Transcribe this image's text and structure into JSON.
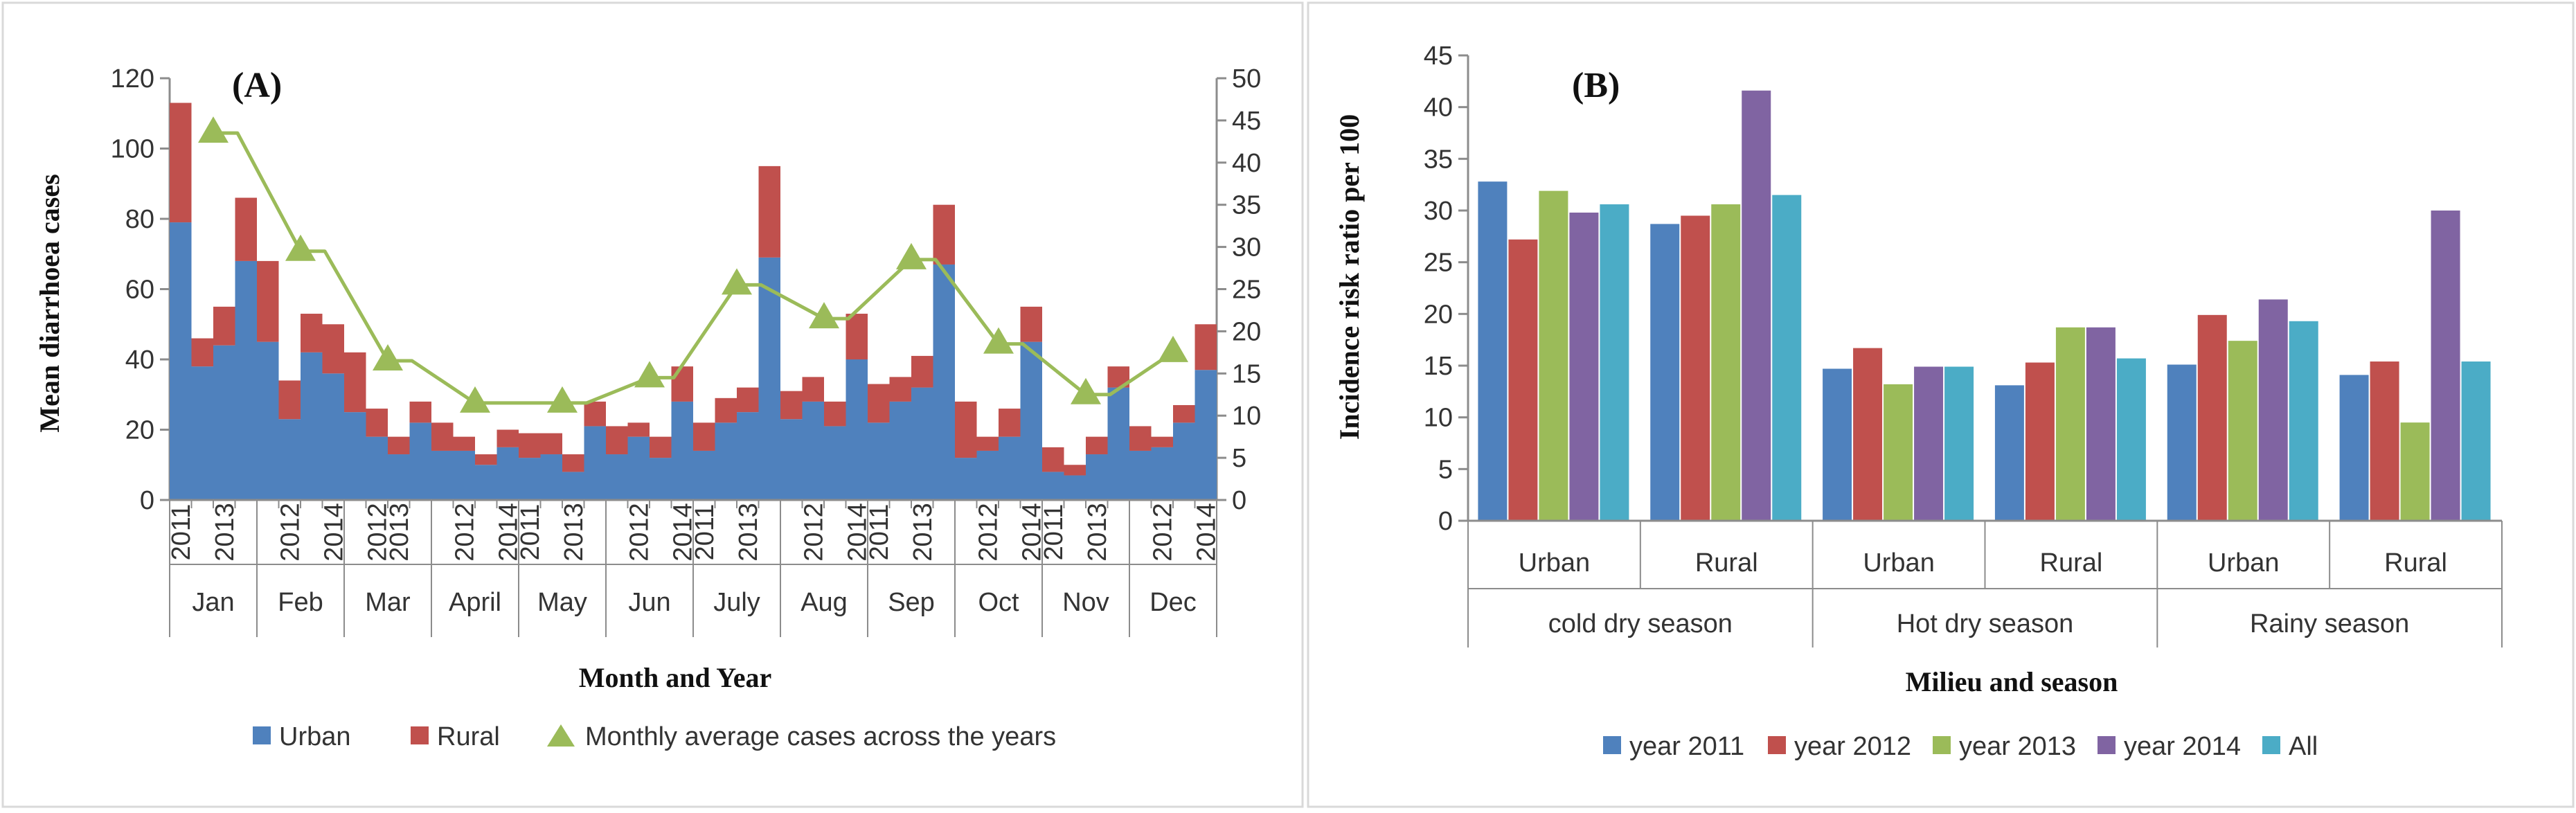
{
  "colors": {
    "urban": "#4F81BD",
    "rural": "#C0504D",
    "average": "#9BBB59",
    "y2011": "#4F81BD",
    "y2012": "#C0504D",
    "y2013": "#9BBB59",
    "y2014": "#8064A2",
    "all": "#4BACC6"
  },
  "chart_data": [
    {
      "type": "bar",
      "subtype": "stacked-with-line",
      "panel_label": "(A)",
      "xlabel": "Month and Year",
      "ylabel": "Mean diarrhoea cases",
      "ylim": [
        0,
        120
      ],
      "y_ticks": [
        0,
        20,
        40,
        60,
        80,
        100,
        120
      ],
      "y2lim": [
        0,
        50
      ],
      "y2_ticks": [
        0,
        5,
        10,
        15,
        20,
        25,
        30,
        35,
        40,
        45,
        50
      ],
      "months": [
        "Jan",
        "Feb",
        "Mar",
        "April",
        "May",
        "Jun",
        "July",
        "Aug",
        "Sep",
        "Oct",
        "Nov",
        "Dec"
      ],
      "year_labels": [
        [
          "2011",
          "",
          "2013",
          ""
        ],
        [
          "",
          "2012",
          "",
          "2014"
        ],
        [
          "",
          "2012",
          "2013",
          ""
        ],
        [
          "",
          "2012",
          "",
          "2014"
        ],
        [
          "2011",
          "",
          "2013",
          ""
        ],
        [
          "",
          "2012",
          "",
          "2014"
        ],
        [
          "2011",
          "",
          "2013",
          ""
        ],
        [
          "",
          "2012",
          "",
          "2014"
        ],
        [
          "2011",
          "",
          "2013",
          ""
        ],
        [
          "",
          "2012",
          "",
          "2014"
        ],
        [
          "2011",
          "",
          "2013",
          ""
        ],
        [
          "",
          "2012",
          "",
          "2014"
        ]
      ],
      "series": [
        {
          "name": "Urban",
          "values": [
            [
              79,
              38,
              44,
              68
            ],
            [
              45,
              23,
              42,
              36
            ],
            [
              25,
              18,
              13,
              22
            ],
            [
              14,
              14,
              10,
              15
            ],
            [
              12,
              13,
              8,
              21
            ],
            [
              13,
              18,
              12,
              28
            ],
            [
              14,
              22,
              25,
              69
            ],
            [
              23,
              28,
              21,
              40
            ],
            [
              22,
              28,
              32,
              67
            ],
            [
              12,
              14,
              18,
              45
            ],
            [
              8,
              7,
              13,
              32
            ],
            [
              14,
              15,
              22,
              37
            ]
          ]
        },
        {
          "name": "Rural",
          "values": [
            [
              34,
              8,
              11,
              18
            ],
            [
              23,
              11,
              11,
              14
            ],
            [
              17,
              8,
              5,
              6
            ],
            [
              8,
              4,
              3,
              5
            ],
            [
              7,
              6,
              5,
              7
            ],
            [
              8,
              4,
              6,
              10
            ],
            [
              8,
              7,
              7,
              26
            ],
            [
              8,
              7,
              7,
              13
            ],
            [
              11,
              7,
              9,
              17
            ],
            [
              16,
              4,
              8,
              10
            ],
            [
              7,
              3,
              5,
              6
            ],
            [
              7,
              3,
              5,
              13
            ]
          ]
        },
        {
          "name": "Monthly average cases across the years",
          "axis": "secondary",
          "values": [
            43.5,
            29.5,
            16.5,
            11.5,
            11.5,
            14.5,
            25.5,
            21.5,
            28.5,
            18.5,
            12.5,
            17.5
          ]
        }
      ],
      "legend": [
        "Urban",
        "Rural",
        "Monthly average cases across the years"
      ],
      "legend_position": "bottom"
    },
    {
      "type": "bar",
      "subtype": "grouped",
      "panel_label": "(B)",
      "xlabel": "Milieu and season",
      "ylabel": "Incidence risk ratio per 100",
      "ylim": [
        0,
        45
      ],
      "y_ticks": [
        0,
        5,
        10,
        15,
        20,
        25,
        30,
        35,
        40,
        45
      ],
      "seasons": [
        {
          "name": "cold dry season",
          "groups": [
            "Urban",
            "Rural"
          ]
        },
        {
          "name": "Hot dry season",
          "groups": [
            "Urban",
            "Rural"
          ]
        },
        {
          "name": "Rainy season",
          "groups": [
            "Urban",
            "Rural"
          ]
        }
      ],
      "series": [
        {
          "name": "year 2011",
          "values": [
            32.8,
            28.7,
            14.7,
            13.1,
            15.1,
            14.1
          ]
        },
        {
          "name": "year 2012",
          "values": [
            27.2,
            29.5,
            16.7,
            15.3,
            19.9,
            15.4
          ]
        },
        {
          "name": "year 2013",
          "values": [
            31.9,
            30.6,
            13.2,
            18.7,
            17.4,
            9.5
          ]
        },
        {
          "name": "year 2014",
          "values": [
            29.8,
            41.6,
            14.9,
            18.7,
            21.4,
            30.0
          ]
        },
        {
          "name": "All",
          "values": [
            30.6,
            31.5,
            14.9,
            15.7,
            19.3,
            15.4
          ]
        }
      ],
      "legend": [
        "year 2011",
        "year 2012",
        "year 2013",
        "year 2014",
        "All"
      ],
      "legend_position": "bottom"
    }
  ]
}
